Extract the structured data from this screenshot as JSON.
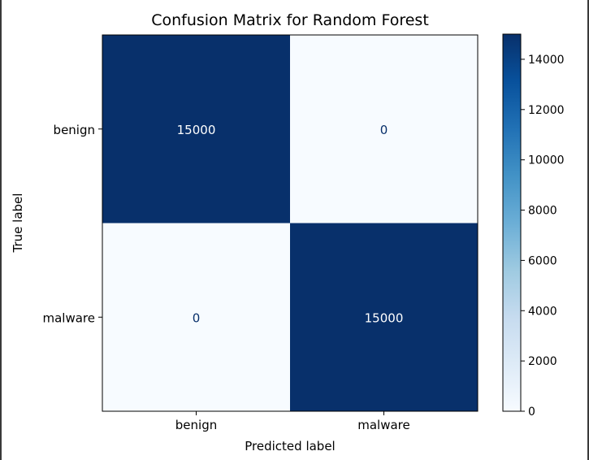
{
  "chart_data": {
    "type": "heatmap",
    "title": "Confusion Matrix for Random Forest",
    "xlabel": "Predicted label",
    "ylabel": "True label",
    "x_categories": [
      "benign",
      "malware"
    ],
    "y_categories": [
      "benign",
      "malware"
    ],
    "values": [
      [
        15000,
        0
      ],
      [
        0,
        15000
      ]
    ],
    "colormap": "Blues",
    "colorbar": {
      "range": [
        0,
        15000
      ],
      "ticks": [
        0,
        2000,
        4000,
        6000,
        8000,
        10000,
        12000,
        14000
      ]
    },
    "colors": {
      "high": "#08306b",
      "low": "#f7fbff",
      "text_on_dark": "#ffffff",
      "text_on_light": "#08306b"
    }
  }
}
